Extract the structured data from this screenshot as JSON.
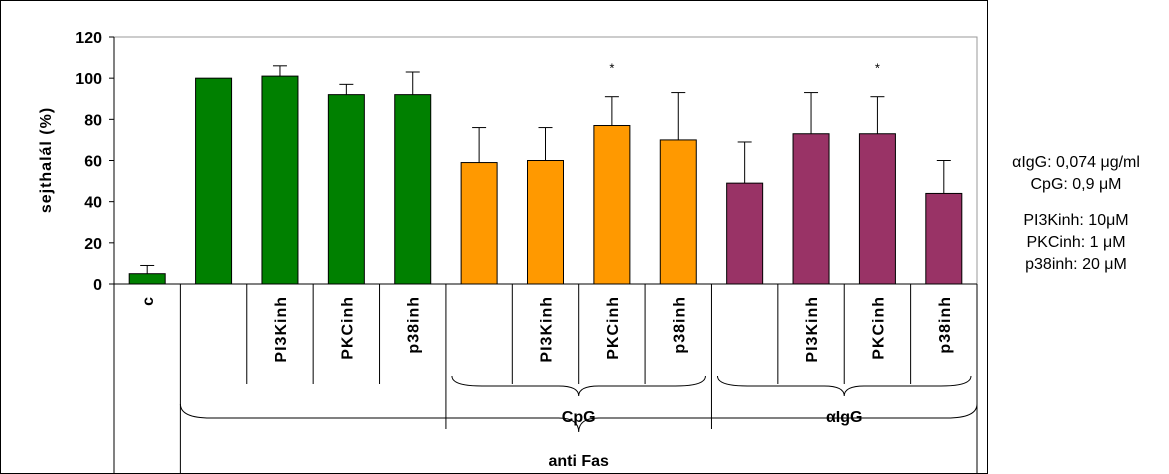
{
  "chart_data": {
    "type": "bar",
    "ylabel": "sejthalál (%)",
    "ylim": [
      0,
      120
    ],
    "yticks": [
      0,
      20,
      40,
      60,
      80,
      100,
      120
    ],
    "grid": false,
    "legend": "none",
    "categories": [
      "c",
      "",
      "PI3Kinh",
      "PKCinh",
      "p38inh",
      "",
      "PI3Kinh",
      "PKCinh",
      "p38inh",
      "",
      "PI3Kinh",
      "PKCinh",
      "p38inh"
    ],
    "values": [
      5,
      100,
      101,
      92,
      92,
      59,
      60,
      77,
      70,
      49,
      73,
      73,
      44
    ],
    "errors": [
      4,
      0,
      5,
      5,
      11,
      17,
      16,
      14,
      23,
      20,
      20,
      18,
      16
    ],
    "significance": [
      "",
      "",
      "",
      "",
      "",
      "",
      "",
      "*",
      "",
      "",
      "",
      "*",
      ""
    ],
    "bar_colors": [
      "#008000",
      "#008000",
      "#008000",
      "#008000",
      "#008000",
      "#ff9900",
      "#ff9900",
      "#ff9900",
      "#ff9900",
      "#993366",
      "#993366",
      "#993366",
      "#993366"
    ],
    "group_labels": [
      {
        "label": "CpG",
        "from": 5,
        "to": 8
      },
      {
        "label": "αIgG",
        "from": 9,
        "to": 12
      },
      {
        "label": "anti Fas",
        "from": 1,
        "to": 12
      }
    ]
  },
  "notes": {
    "line1": "αIgG: 0,074 μg/ml",
    "line2": "CpG: 0,9 μM",
    "line3": "PI3Kinh: 10μM",
    "line4": "PKCinh: 1 μM",
    "line5": "p38inh: 20 μM"
  }
}
